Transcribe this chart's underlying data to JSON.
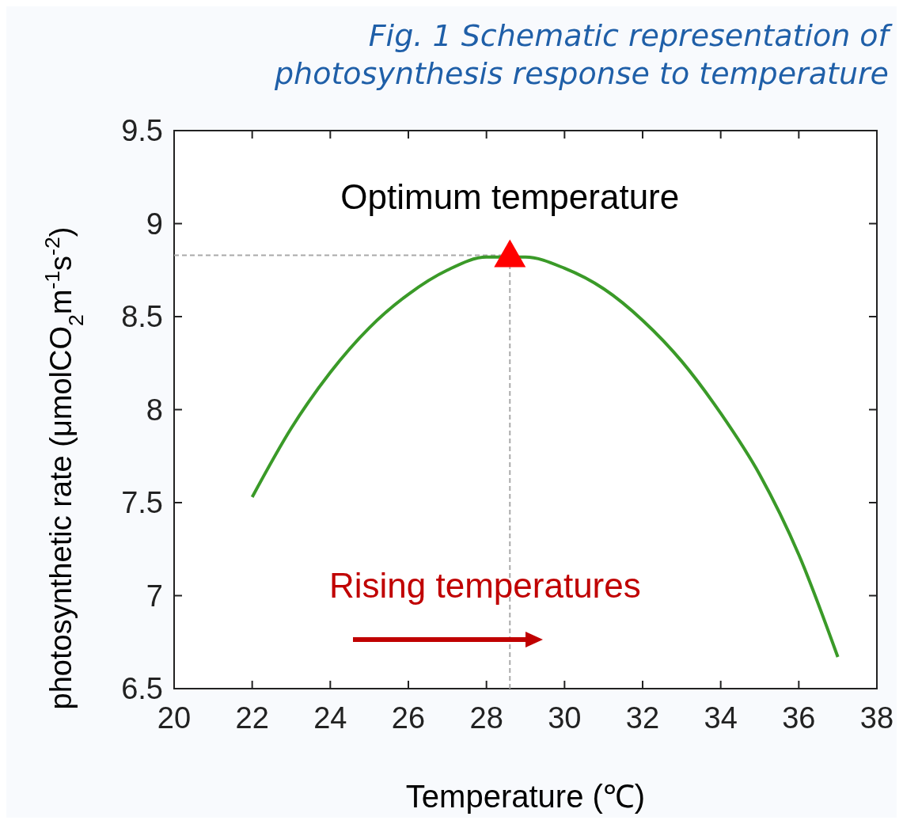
{
  "chart_data": {
    "type": "line",
    "title": "Fig. 1 Schematic representation of photosynthesis response to temperature",
    "xlabel": "Temperature (℃)",
    "ylabel": "photosynthetic rate (μmolCO$_{2}$m$^{-1}$s$^{-2}$)",
    "xlim": [
      20,
      38
    ],
    "xticks": [
      20,
      22,
      24,
      26,
      28,
      30,
      32,
      34,
      36,
      38
    ],
    "ylim": [
      6.5,
      9.5
    ],
    "yticks": [
      6.5,
      7,
      7.5,
      8,
      8.5,
      9,
      9.5
    ],
    "grid": false,
    "series": [
      {
        "color": "#3a9a28",
        "marker": "none",
        "x": [
          22,
          23,
          24,
          25,
          26,
          27,
          28,
          29,
          30,
          31,
          32,
          33,
          34,
          35,
          36,
          37
        ],
        "values": [
          7.53,
          7.9,
          8.2,
          8.44,
          8.62,
          8.75,
          8.82,
          8.82,
          8.76,
          8.65,
          8.48,
          8.26,
          7.98,
          7.65,
          7.22,
          6.67
        ]
      },
      {
        "type": "scatter",
        "color": "#ff0000",
        "marker": "triangle",
        "x": [
          28.6
        ],
        "values": [
          8.83
        ]
      }
    ],
    "ref_lines": [
      {
        "axis": "x",
        "value": 28.6,
        "color": "#aaaaaa",
        "line_style": "dashed"
      },
      {
        "axis": "y",
        "value": 8.83,
        "color": "#aaaaaa",
        "line_style": "dashed"
      }
    ],
    "annotations": [
      {
        "text": "Optimum temperature",
        "x": 28.6,
        "y": 8.83
      },
      "Rising temperatures"
    ]
  }
}
